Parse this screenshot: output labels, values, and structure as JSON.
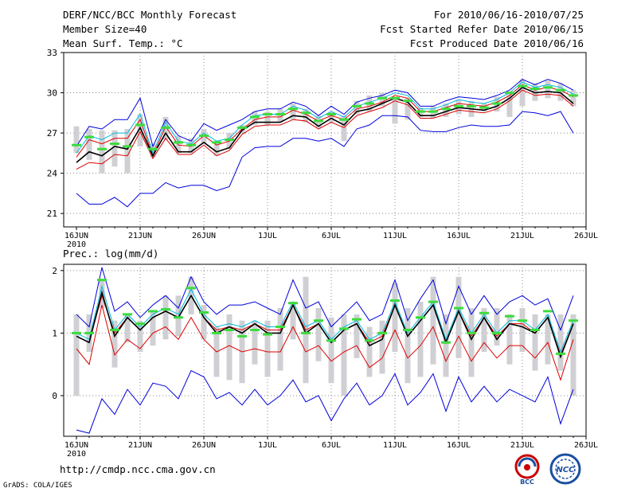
{
  "header": {
    "title": "DERF/NCC/BCC Monthly Forecast",
    "member_size": "Member Size=40",
    "variable": "Mean Surf. Temp.: °C",
    "period": "For 2010/06/16-2010/07/25",
    "fcst_start": "Fcst Started Refer Date 2010/06/15",
    "fcst_produced": "Fcst Produced Date 2010/06/16"
  },
  "footer": {
    "url": "http://cmdp.ncc.cma.gov.cn",
    "grads": "GrADS: COLA/IGES",
    "logo1_text": "BCC",
    "logo2_text": "NCC"
  },
  "colors": {
    "box": "#d0d0d4",
    "median": "#3cdc3c",
    "mean": "#000000",
    "cyan": "#00bbdd",
    "red": "#dd0000",
    "blue": "#0000dd"
  },
  "chart_data": [
    {
      "type": "box+line",
      "title": "Mean Surf. Temp.: °C",
      "xlabel": "",
      "ylabel": "",
      "ylim": [
        20,
        33
      ],
      "yticks": [
        21,
        24,
        27,
        30,
        33
      ],
      "xticks": [
        {
          "day": 0,
          "label": "16JUN",
          "sub": "2010"
        },
        {
          "day": 5,
          "label": "21JUN"
        },
        {
          "day": 10,
          "label": "26JUN"
        },
        {
          "day": 15,
          "label": "1JUL"
        },
        {
          "day": 20,
          "label": "6JUL"
        },
        {
          "day": 25,
          "label": "11JUL"
        },
        {
          "day": 30,
          "label": "16JUL"
        },
        {
          "day": 35,
          "label": "21JUL"
        },
        {
          "day": 40,
          "label": "26JUL"
        }
      ],
      "days": [
        0,
        1,
        2,
        3,
        4,
        5,
        6,
        7,
        8,
        9,
        10,
        11,
        12,
        13,
        14,
        15,
        16,
        17,
        18,
        19,
        20,
        21,
        22,
        23,
        24,
        25,
        26,
        27,
        28,
        29,
        30,
        31,
        32,
        33,
        34,
        35,
        36,
        37,
        38,
        39
      ],
      "box_low": [
        25.5,
        25.0,
        24.0,
        24.5,
        24.0,
        26.0,
        25.2,
        26.5,
        25.5,
        25.5,
        26.2,
        25.3,
        25.8,
        27.0,
        27.6,
        27.6,
        27.8,
        28.0,
        27.8,
        27.4,
        27.8,
        26.4,
        28.4,
        28.6,
        29.0,
        27.7,
        28.0,
        28.2,
        28.1,
        28.2,
        28.4,
        28.2,
        28.6,
        28.6,
        28.2,
        29.0,
        29.4,
        29.6,
        29.4,
        29.0
      ],
      "box_high": [
        27.5,
        27.3,
        27.2,
        27.2,
        27.3,
        28.4,
        26.2,
        28.2,
        26.8,
        26.6,
        27.3,
        26.4,
        27.0,
        27.6,
        28.6,
        28.6,
        28.8,
        29.2,
        28.8,
        28.3,
        28.6,
        28.3,
        29.4,
        29.8,
        30.0,
        29.7,
        29.6,
        28.9,
        29.0,
        29.2,
        29.5,
        29.4,
        29.2,
        29.7,
        30.0,
        31.0,
        30.7,
        30.9,
        30.7,
        30.2
      ],
      "median": [
        26.1,
        26.7,
        25.8,
        26.2,
        26.0,
        27.6,
        25.8,
        27.4,
        26.3,
        26.1,
        26.8,
        26.3,
        26.5,
        27.4,
        28.2,
        28.4,
        28.4,
        28.8,
        28.5,
        27.9,
        28.4,
        28.0,
        29.0,
        29.2,
        29.6,
        29.6,
        29.4,
        28.6,
        28.6,
        28.8,
        29.0,
        29.0,
        28.9,
        29.2,
        30.0,
        30.5,
        30.3,
        30.4,
        30.2,
        29.8
      ],
      "series": [
        {
          "name": "max",
          "color": "blue",
          "values": [
            26.0,
            27.5,
            27.3,
            28.0,
            28.0,
            29.6,
            26.0,
            28.0,
            26.8,
            26.4,
            27.7,
            27.2,
            27.6,
            28.0,
            28.6,
            28.8,
            28.8,
            29.3,
            29.0,
            28.3,
            29.0,
            28.4,
            29.3,
            29.6,
            29.8,
            30.2,
            30.0,
            29.0,
            29.0,
            29.4,
            29.7,
            29.6,
            29.5,
            29.8,
            30.2,
            31.0,
            30.6,
            31.0,
            30.7,
            30.2
          ]
        },
        {
          "name": "cyan",
          "color": "cyan",
          "values": [
            25.5,
            26.8,
            26.5,
            27.0,
            27.0,
            28.4,
            25.5,
            27.8,
            26.4,
            26.2,
            27.0,
            26.4,
            26.6,
            27.6,
            28.3,
            28.4,
            28.4,
            29.0,
            28.7,
            28.1,
            28.6,
            28.2,
            29.0,
            29.3,
            29.6,
            30.0,
            29.8,
            28.8,
            28.8,
            29.1,
            29.5,
            29.3,
            29.2,
            29.5,
            30.0,
            30.8,
            30.4,
            30.6,
            30.4,
            29.9
          ]
        },
        {
          "name": "red_upper",
          "color": "red",
          "values": [
            25.2,
            26.5,
            26.2,
            26.6,
            26.6,
            28.0,
            25.3,
            27.5,
            26.1,
            26.0,
            26.8,
            26.1,
            26.4,
            27.3,
            28.0,
            28.2,
            28.2,
            28.7,
            28.4,
            27.9,
            28.3,
            28.0,
            28.8,
            29.0,
            29.3,
            29.8,
            29.6,
            28.6,
            28.6,
            28.9,
            29.2,
            29.1,
            29.0,
            29.3,
            29.8,
            30.6,
            30.2,
            30.4,
            30.2,
            29.7
          ]
        },
        {
          "name": "mean",
          "color": "mean",
          "values": [
            24.8,
            25.6,
            25.3,
            26.0,
            25.8,
            27.4,
            25.3,
            27.0,
            25.6,
            25.6,
            26.3,
            25.6,
            25.9,
            27.2,
            27.8,
            27.8,
            27.8,
            28.3,
            28.2,
            27.5,
            28.1,
            27.6,
            28.6,
            28.8,
            29.2,
            29.6,
            29.3,
            28.3,
            28.3,
            28.6,
            28.9,
            28.8,
            28.7,
            29.0,
            29.6,
            30.4,
            30.0,
            30.1,
            30.0,
            29.2
          ]
        },
        {
          "name": "red_lower",
          "color": "red",
          "values": [
            24.3,
            24.8,
            24.7,
            25.4,
            25.3,
            27.1,
            25.1,
            26.6,
            25.4,
            25.4,
            26.1,
            25.3,
            25.7,
            26.9,
            27.5,
            27.6,
            27.6,
            28.0,
            27.9,
            27.3,
            27.8,
            27.4,
            28.3,
            28.6,
            28.9,
            29.4,
            29.1,
            28.1,
            28.1,
            28.4,
            28.7,
            28.6,
            28.5,
            28.8,
            29.4,
            30.2,
            29.8,
            29.9,
            29.8,
            29.0
          ]
        },
        {
          "name": "min",
          "color": "blue",
          "values": [
            22.5,
            21.7,
            21.7,
            22.2,
            21.5,
            22.5,
            22.5,
            23.3,
            22.9,
            23.1,
            23.1,
            22.7,
            23.0,
            25.2,
            25.9,
            26.0,
            26.0,
            26.6,
            26.6,
            26.4,
            26.6,
            26.0,
            27.3,
            27.6,
            28.3,
            28.3,
            28.2,
            27.2,
            27.1,
            27.1,
            27.4,
            27.6,
            27.5,
            27.5,
            27.6,
            28.6,
            28.5,
            28.3,
            28.6,
            27.0
          ]
        }
      ]
    },
    {
      "type": "box+line",
      "title": "Prec.: log(mm/d)",
      "xlabel": "",
      "ylabel": "",
      "ylim": [
        -0.65,
        2.1
      ],
      "yticks": [
        0,
        1,
        2
      ],
      "xticks": [
        {
          "day": 0,
          "label": "16JUN",
          "sub": "2010"
        },
        {
          "day": 5,
          "label": "21JUN"
        },
        {
          "day": 10,
          "label": "26JUN"
        },
        {
          "day": 15,
          "label": "1JUL"
        },
        {
          "day": 20,
          "label": "6JUL"
        },
        {
          "day": 25,
          "label": "11JUL"
        },
        {
          "day": 30,
          "label": "16JUL"
        },
        {
          "day": 35,
          "label": "21JUL"
        },
        {
          "day": 40,
          "label": "26JUL"
        }
      ],
      "days": [
        0,
        1,
        2,
        3,
        4,
        5,
        6,
        7,
        8,
        9,
        10,
        11,
        12,
        13,
        14,
        15,
        16,
        17,
        18,
        19,
        20,
        21,
        22,
        23,
        24,
        25,
        26,
        27,
        28,
        29,
        30,
        31,
        32,
        33,
        34,
        35,
        36,
        37,
        38,
        39
      ],
      "box_low": [
        0.0,
        0.7,
        1.4,
        0.45,
        0.85,
        0.7,
        0.8,
        0.9,
        0.95,
        1.3,
        0.9,
        0.3,
        0.25,
        0.2,
        0.5,
        0.3,
        0.4,
        0.9,
        0.2,
        0.55,
        0.2,
        0.0,
        0.6,
        0.3,
        0.35,
        0.7,
        0.2,
        0.3,
        0.5,
        0.3,
        0.6,
        0.3,
        0.7,
        0.8,
        0.5,
        0.7,
        0.4,
        0.5,
        0.4,
        0.0
      ],
      "box_high": [
        1.3,
        1.3,
        1.85,
        1.2,
        1.3,
        1.2,
        1.35,
        1.6,
        1.6,
        1.9,
        1.45,
        1.1,
        1.3,
        1.2,
        1.2,
        1.2,
        1.4,
        1.5,
        1.9,
        1.4,
        1.25,
        1.3,
        1.3,
        1.1,
        1.2,
        1.8,
        1.4,
        1.5,
        1.9,
        1.3,
        1.9,
        1.4,
        1.4,
        1.4,
        1.3,
        1.4,
        1.3,
        1.3,
        1.3,
        1.3
      ],
      "median": [
        1.0,
        1.0,
        1.85,
        1.05,
        1.3,
        1.15,
        1.35,
        1.38,
        1.25,
        1.72,
        1.33,
        1.0,
        1.05,
        0.95,
        1.05,
        0.98,
        1.1,
        1.48,
        1.0,
        1.2,
        0.88,
        1.07,
        1.22,
        0.88,
        1.0,
        1.52,
        1.05,
        1.25,
        1.5,
        0.85,
        1.4,
        1.0,
        1.32,
        1.0,
        1.27,
        1.2,
        1.05,
        1.35,
        0.67,
        1.2
      ],
      "series": [
        {
          "name": "max",
          "color": "blue",
          "values": [
            1.3,
            1.1,
            2.05,
            1.35,
            1.5,
            1.25,
            1.45,
            1.6,
            1.4,
            1.9,
            1.5,
            1.3,
            1.45,
            1.45,
            1.5,
            1.4,
            1.3,
            1.85,
            1.4,
            1.5,
            1.1,
            1.3,
            1.5,
            1.2,
            1.3,
            1.85,
            1.2,
            1.55,
            1.85,
            1.15,
            1.75,
            1.3,
            1.6,
            1.3,
            1.5,
            1.6,
            1.45,
            1.55,
            1.05,
            1.6
          ]
        },
        {
          "name": "cyan",
          "color": "cyan",
          "values": [
            1.0,
            0.9,
            1.75,
            1.05,
            1.3,
            1.1,
            1.3,
            1.4,
            1.3,
            1.7,
            1.3,
            1.1,
            1.15,
            1.1,
            1.2,
            1.1,
            1.1,
            1.5,
            1.1,
            1.2,
            0.9,
            1.1,
            1.2,
            0.9,
            1.0,
            1.5,
            1.0,
            1.25,
            1.5,
            0.9,
            1.4,
            1.0,
            1.3,
            1.0,
            1.2,
            1.2,
            1.05,
            1.3,
            0.7,
            1.2
          ]
        },
        {
          "name": "red_upper",
          "color": "red",
          "values": [
            0.95,
            0.85,
            1.6,
            1.0,
            1.25,
            1.05,
            1.25,
            1.35,
            1.25,
            1.6,
            1.25,
            1.05,
            1.1,
            1.05,
            1.15,
            1.05,
            1.05,
            1.45,
            1.05,
            1.15,
            0.85,
            1.05,
            1.15,
            0.85,
            0.95,
            1.45,
            0.95,
            1.2,
            1.45,
            0.85,
            1.35,
            0.95,
            1.25,
            0.95,
            1.15,
            1.15,
            1.0,
            1.25,
            0.65,
            1.15
          ]
        },
        {
          "name": "mean",
          "color": "mean",
          "values": [
            0.95,
            0.85,
            1.65,
            0.95,
            1.25,
            1.05,
            1.25,
            1.35,
            1.25,
            1.6,
            1.25,
            1.0,
            1.1,
            1.0,
            1.15,
            1.0,
            1.0,
            1.45,
            1.0,
            1.15,
            0.85,
            1.05,
            1.15,
            0.8,
            0.9,
            1.45,
            0.95,
            1.2,
            1.45,
            0.85,
            1.35,
            0.9,
            1.25,
            0.9,
            1.15,
            1.1,
            1.0,
            1.25,
            0.62,
            1.15
          ]
        },
        {
          "name": "red_lower",
          "color": "red",
          "values": [
            0.75,
            0.5,
            1.45,
            0.65,
            0.9,
            0.75,
            1.0,
            1.1,
            0.9,
            1.25,
            0.9,
            0.7,
            0.8,
            0.7,
            0.75,
            0.7,
            0.7,
            1.1,
            0.7,
            0.8,
            0.55,
            0.7,
            0.8,
            0.45,
            0.6,
            1.05,
            0.6,
            0.8,
            1.1,
            0.55,
            0.95,
            0.55,
            0.85,
            0.6,
            0.8,
            0.8,
            0.6,
            0.85,
            0.25,
            0.9
          ]
        },
        {
          "name": "min",
          "color": "blue",
          "values": [
            -0.55,
            -0.6,
            -0.05,
            -0.3,
            0.1,
            -0.15,
            0.2,
            0.15,
            -0.05,
            0.4,
            0.3,
            -0.05,
            0.05,
            -0.15,
            0.1,
            -0.15,
            0.0,
            0.25,
            -0.1,
            0.0,
            -0.4,
            -0.05,
            0.2,
            -0.15,
            0.0,
            0.35,
            -0.15,
            0.05,
            0.35,
            -0.25,
            0.3,
            -0.1,
            0.15,
            -0.1,
            0.1,
            0.0,
            -0.1,
            0.3,
            -0.45,
            0.1
          ]
        }
      ]
    }
  ]
}
